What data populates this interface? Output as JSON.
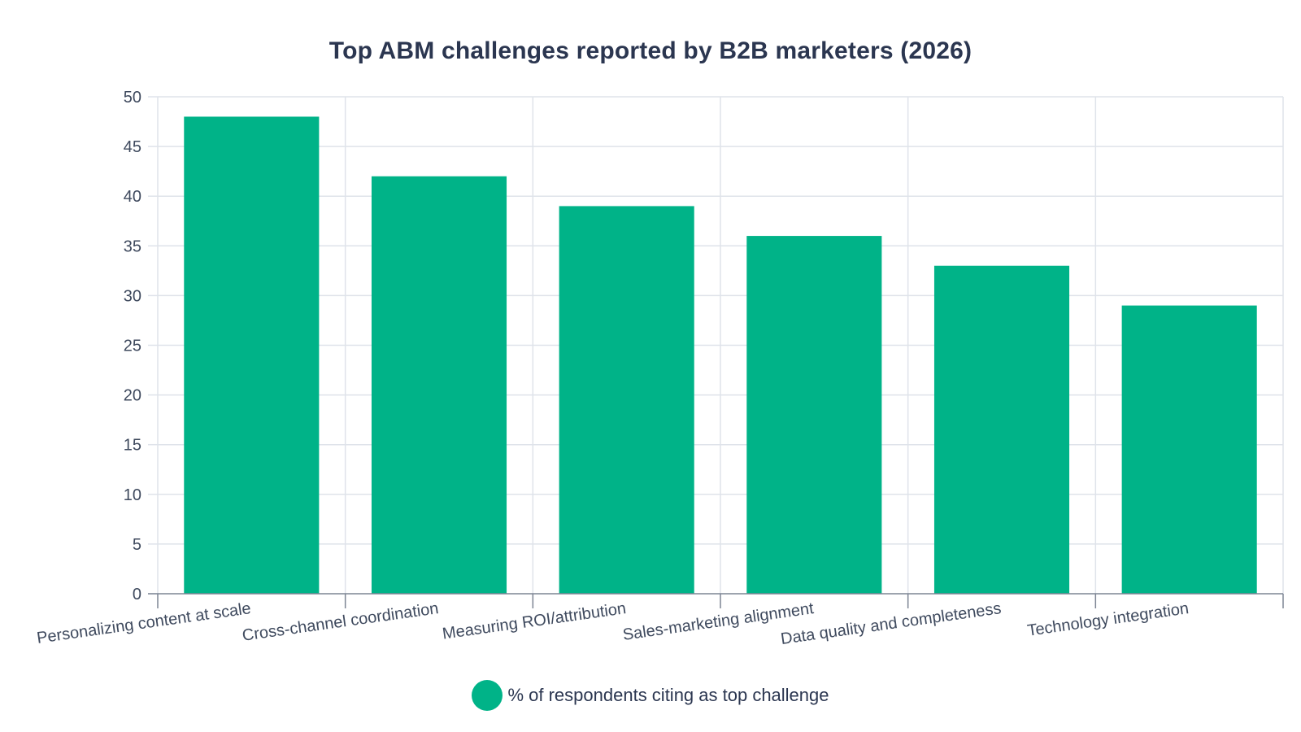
{
  "chart_data": {
    "type": "bar",
    "title": "Top ABM challenges reported by B2B marketers (2026)",
    "xlabel": "",
    "ylabel": "",
    "categories": [
      "Personalizing content at scale",
      "Cross-channel coordination",
      "Measuring ROI/attribution",
      "Sales-marketing alignment",
      "Data quality and completeness",
      "Technology integration"
    ],
    "series": [
      {
        "name": "% of respondents citing as top challenge",
        "values": [
          48,
          42,
          39,
          36,
          33,
          29
        ],
        "color": "#00b388"
      }
    ],
    "ylim": [
      0,
      50
    ],
    "yticks": [
      0,
      5,
      10,
      15,
      20,
      25,
      30,
      35,
      40,
      45,
      50
    ],
    "grid": true,
    "legend_position": "bottom-center"
  }
}
